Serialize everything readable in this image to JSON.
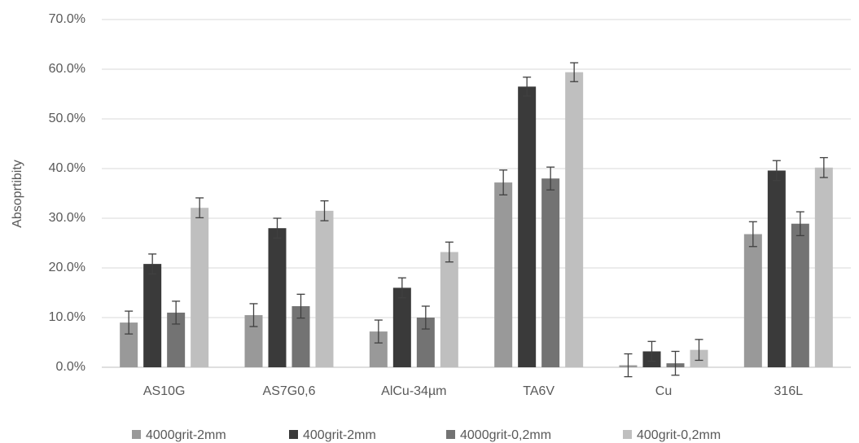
{
  "chart_data": {
    "type": "bar",
    "y_label": "Absoprtibity",
    "categories": [
      "AS10G",
      "AS7G0,6",
      "AlCu-34µm",
      "TA6V",
      "Cu",
      "316L"
    ],
    "series": [
      {
        "name": "4000grit-2mm",
        "color": "#999999",
        "values": [
          9.0,
          10.5,
          7.2,
          37.2,
          0.4,
          26.8
        ],
        "errors": [
          2.3,
          2.3,
          2.3,
          2.5,
          2.3,
          2.5
        ]
      },
      {
        "name": "400grit-2mm",
        "color": "#3a3a3a",
        "values": [
          20.8,
          28.0,
          16.0,
          56.5,
          3.2,
          39.6
        ],
        "errors": [
          2.0,
          2.0,
          2.0,
          1.9,
          2.0,
          2.0
        ]
      },
      {
        "name": "4000grit-0,2mm",
        "color": "#737373",
        "values": [
          11.0,
          12.3,
          10.0,
          38.0,
          0.8,
          28.9
        ],
        "errors": [
          2.3,
          2.4,
          2.3,
          2.3,
          2.4,
          2.4
        ]
      },
      {
        "name": "400grit-0,2mm",
        "color": "#bfbfbf",
        "values": [
          32.1,
          31.5,
          23.2,
          59.4,
          3.5,
          40.2
        ],
        "errors": [
          2.0,
          2.0,
          2.0,
          1.9,
          2.1,
          2.0
        ]
      }
    ],
    "ylim": [
      0,
      70
    ],
    "yticks": [
      {
        "value": 0,
        "label": "0.0%"
      },
      {
        "value": 10,
        "label": "10.0%"
      },
      {
        "value": 20,
        "label": "20.0%"
      },
      {
        "value": 30,
        "label": "30.0%"
      },
      {
        "value": 40,
        "label": "40.0%"
      },
      {
        "value": 50,
        "label": "50.0%"
      },
      {
        "value": 60,
        "label": "60.0%"
      },
      {
        "value": 70,
        "label": "70.0%"
      }
    ],
    "grid": true,
    "legend": "bottom"
  }
}
